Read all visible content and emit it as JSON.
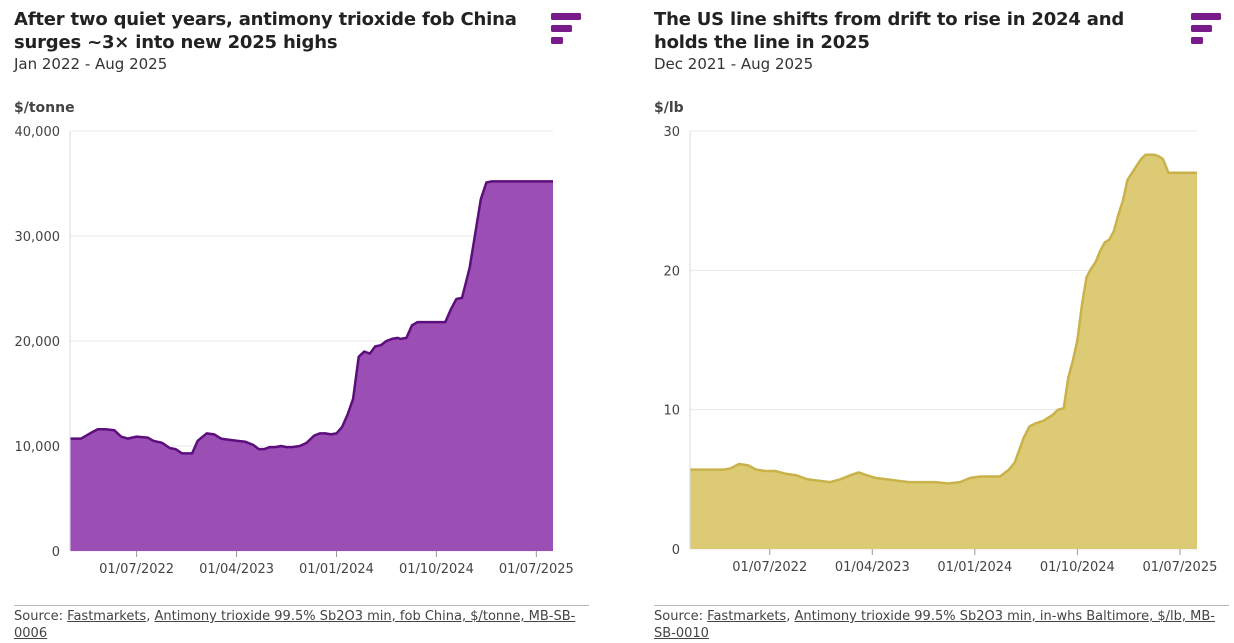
{
  "colors": {
    "left_fill": "#9b4fb4",
    "left_line": "#5c0f7c",
    "right_fill": "#dccb74",
    "right_line": "#c9b24a",
    "brand": "#7a1b8c"
  },
  "chart_data": [
    {
      "type": "area",
      "title": "After two quiet years, antimony trioxide fob China surges ~3× into new 2025 highs",
      "subtitle": "Jan 2022 - Aug 2025",
      "ylabel": "$/tonne",
      "ylim": [
        0,
        40000
      ],
      "yticks": [
        0,
        10000,
        20000,
        30000,
        40000
      ],
      "ytick_labels": [
        "0",
        "10,000",
        "20,000",
        "30,000",
        "40,000"
      ],
      "xlim": [
        0,
        43.5
      ],
      "xticks": [
        6,
        15,
        24,
        33,
        42
      ],
      "xtick_labels": [
        "01/07/2022",
        "01/04/2023",
        "01/01/2024",
        "01/10/2024",
        "01/07/2025"
      ],
      "x": [
        0,
        1,
        1.8,
        2.5,
        3.2,
        4.0,
        4.6,
        5.2,
        6.0,
        7.0,
        7.5,
        8.3,
        9.0,
        9.5,
        10.1,
        11.0,
        11.5,
        12.3,
        13.0,
        13.6,
        14.3,
        15.0,
        15.8,
        16.5,
        17.0,
        17.5,
        18.0,
        18.5,
        19.0,
        19.5,
        20.0,
        20.7,
        21.3,
        22.0,
        22.5,
        23.0,
        23.5,
        24.0,
        24.5,
        25.0,
        25.5,
        26.0,
        26.5,
        27.0,
        27.5,
        28.0,
        28.5,
        29.0,
        29.5,
        29.8,
        30.3,
        30.8,
        31.3,
        32.0,
        32.7,
        33.2,
        33.8,
        34.3,
        34.8,
        35.3,
        36.0,
        37.0,
        37.5,
        38.0,
        38.5,
        39.0,
        39.4,
        39.8,
        40.1,
        40.5,
        41.0,
        42.0,
        43.5
      ],
      "y": [
        10700,
        10700,
        11200,
        11600,
        11600,
        11500,
        10900,
        10700,
        10900,
        10800,
        10500,
        10300,
        9800,
        9700,
        9300,
        9300,
        10500,
        11200,
        11100,
        10700,
        10600,
        10500,
        10400,
        10100,
        9700,
        9700,
        9900,
        9900,
        10000,
        9900,
        9900,
        10000,
        10300,
        11000,
        11200,
        11200,
        11100,
        11200,
        11800,
        13000,
        14500,
        18500,
        19000,
        18800,
        19500,
        19600,
        20000,
        20200,
        20300,
        20200,
        20300,
        21500,
        21800,
        21800,
        21800,
        21800,
        21800,
        23000,
        24000,
        24100,
        27000,
        33500,
        35100,
        35200,
        35200,
        35200,
        35200,
        35200,
        35200,
        35200,
        35200,
        35200,
        35200
      ],
      "source_prefix": "Source: ",
      "source_org": "Fastmarkets",
      "source_sep": ", ",
      "source_text": "Antimony trioxide 99.5% Sb2O3 min, fob China, $/tonne, MB-SB-0006"
    },
    {
      "type": "area",
      "title": "The US line shifts from drift to rise in 2024 and holds the line in 2025",
      "subtitle": "Dec 2021 - Aug 2025",
      "ylabel": "$/lb",
      "ylim": [
        0,
        30
      ],
      "yticks": [
        0,
        10,
        20,
        30
      ],
      "ytick_labels": [
        "0",
        "10",
        "20",
        "30"
      ],
      "xlim": [
        -1,
        43.5
      ],
      "xticks": [
        6,
        15,
        24,
        33,
        42
      ],
      "xtick_labels": [
        "01/07/2022",
        "01/04/2023",
        "01/01/2024",
        "01/10/2024",
        "01/07/2025"
      ],
      "x": [
        -1,
        1.0,
        2.0,
        2.6,
        3.3,
        4.1,
        4.8,
        5.6,
        6.5,
        7.4,
        8.3,
        9.3,
        10.3,
        11.3,
        12.2,
        13.1,
        13.8,
        14.5,
        15.3,
        16.2,
        17.2,
        18.2,
        19.3,
        20.5,
        21.7,
        22.7,
        23.6,
        24.5,
        25.3,
        26.2,
        27.0,
        27.5,
        28.3,
        28.8,
        29.3,
        30.0,
        30.8,
        31.3,
        31.8,
        32.2,
        32.6,
        33.0,
        33.4,
        33.8,
        34.2,
        34.6,
        35.0,
        35.4,
        35.8,
        36.2,
        36.6,
        37.0,
        37.4,
        37.8,
        38.2,
        38.6,
        39.0,
        39.4,
        39.7,
        40.1,
        40.5,
        41.0,
        42.0,
        43.5
      ],
      "y": [
        5.7,
        5.7,
        5.7,
        5.8,
        6.1,
        6.0,
        5.7,
        5.6,
        5.6,
        5.4,
        5.3,
        5.0,
        4.9,
        4.8,
        5.0,
        5.3,
        5.5,
        5.3,
        5.1,
        5.0,
        4.9,
        4.8,
        4.8,
        4.8,
        4.7,
        4.8,
        5.1,
        5.2,
        5.2,
        5.2,
        5.7,
        6.2,
        8.0,
        8.8,
        9.0,
        9.2,
        9.6,
        10.0,
        10.1,
        12.3,
        13.5,
        15.0,
        17.5,
        19.5,
        20.1,
        20.6,
        21.4,
        22.0,
        22.2,
        22.8,
        24.0,
        25.0,
        26.5,
        27.0,
        27.5,
        28.0,
        28.3,
        28.3,
        28.3,
        28.2,
        28.0,
        27.0,
        27.0,
        27.0
      ],
      "source_prefix": "Source: ",
      "source_org": "Fastmarkets",
      "source_sep": ", ",
      "source_text": "Antimony trioxide 99.5% Sb2O3 min, in-whs Baltimore, $/lb, MB-SB-0010"
    }
  ]
}
